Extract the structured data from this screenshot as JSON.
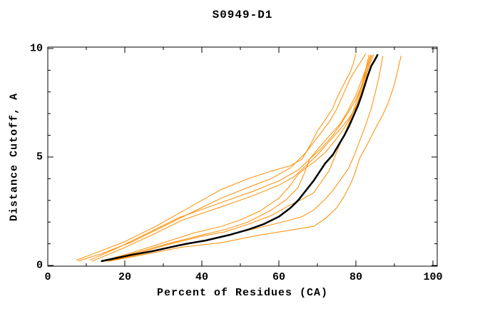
{
  "title": "S0949-D1",
  "chart_data": {
    "type": "line",
    "title": "S0949-D1",
    "xlabel": "Percent of Residues (CA)",
    "ylabel": "Distance Cutoff, A",
    "xlim": [
      0,
      101
    ],
    "ylim": [
      0,
      10.1
    ],
    "grid": false,
    "legend": "none",
    "x_major_ticks": [
      0,
      20,
      40,
      60,
      80,
      100
    ],
    "x_minor_ticks": [
      10,
      30,
      50,
      70,
      90
    ],
    "y_major_ticks": [
      0,
      5,
      10
    ],
    "y_minor_ticks": [
      1,
      2,
      3,
      4,
      6,
      7,
      8,
      9
    ],
    "x_tick_labels": [
      "0",
      "20",
      "40",
      "60",
      "80",
      "100"
    ],
    "y_tick_labels": [
      "0",
      "5",
      "10"
    ],
    "colors": {
      "model_lines": "#ff8c00",
      "highlight_line": "#000000",
      "frame": "#000000"
    },
    "series": [
      {
        "id": "orange-1",
        "color": "#ff8c00",
        "width": 1,
        "points": [
          [
            7.5,
            0.25
          ],
          [
            12,
            0.55
          ],
          [
            20,
            1.1
          ],
          [
            28,
            1.8
          ],
          [
            35,
            2.5
          ],
          [
            45,
            3.5
          ],
          [
            52,
            4.0
          ],
          [
            58,
            4.35
          ],
          [
            63,
            4.6
          ],
          [
            66,
            4.9
          ],
          [
            68,
            5.5
          ],
          [
            70,
            6.2
          ],
          [
            72,
            6.7
          ],
          [
            74,
            7.25
          ],
          [
            75,
            7.7
          ],
          [
            77,
            8.4
          ],
          [
            78.5,
            8.9
          ],
          [
            79.3,
            9.3
          ],
          [
            80,
            9.75
          ]
        ]
      },
      {
        "id": "orange-2",
        "color": "#ff8c00",
        "width": 1,
        "points": [
          [
            8,
            0.2
          ],
          [
            14,
            0.55
          ],
          [
            22,
            1.1
          ],
          [
            30,
            1.8
          ],
          [
            38,
            2.5
          ],
          [
            45,
            3.1
          ],
          [
            52,
            3.6
          ],
          [
            58,
            4.0
          ],
          [
            63,
            4.5
          ],
          [
            67,
            5.2
          ],
          [
            70,
            5.9
          ],
          [
            73,
            6.6
          ],
          [
            75,
            7.2
          ],
          [
            77,
            8.0
          ],
          [
            78.5,
            8.6
          ],
          [
            80,
            9.05
          ],
          [
            81.5,
            9.45
          ],
          [
            82.5,
            9.75
          ]
        ]
      },
      {
        "id": "orange-3",
        "color": "#ff8c00",
        "width": 1,
        "points": [
          [
            11,
            0.25
          ],
          [
            18,
            0.8
          ],
          [
            26,
            1.5
          ],
          [
            34,
            2.2
          ],
          [
            45,
            2.9
          ],
          [
            53,
            3.4
          ],
          [
            60,
            3.9
          ],
          [
            65,
            4.4
          ],
          [
            68,
            4.9
          ],
          [
            71,
            5.4
          ],
          [
            74,
            6.0
          ],
          [
            76,
            6.5
          ],
          [
            78,
            7.05
          ],
          [
            80,
            7.65
          ],
          [
            81.5,
            8.3
          ],
          [
            82.5,
            9.0
          ],
          [
            83.4,
            9.7
          ]
        ]
      },
      {
        "id": "orange-4",
        "color": "#ff8c00",
        "width": 1,
        "points": [
          [
            11.5,
            0.2
          ],
          [
            19,
            0.75
          ],
          [
            27,
            1.4
          ],
          [
            35,
            2.1
          ],
          [
            45,
            2.7
          ],
          [
            53,
            3.2
          ],
          [
            60,
            3.7
          ],
          [
            64,
            4.1
          ],
          [
            67,
            4.6
          ],
          [
            70,
            5.1
          ],
          [
            73,
            5.7
          ],
          [
            76,
            6.3
          ],
          [
            78,
            6.75
          ],
          [
            80,
            7.25
          ],
          [
            81,
            7.85
          ],
          [
            82,
            8.5
          ],
          [
            83,
            9.1
          ],
          [
            84,
            9.65
          ]
        ]
      },
      {
        "id": "orange-5",
        "color": "#ff8c00",
        "width": 1,
        "points": [
          [
            14,
            0.2
          ],
          [
            22,
            0.6
          ],
          [
            30,
            1.05
          ],
          [
            38,
            1.5
          ],
          [
            45,
            1.8
          ],
          [
            50,
            2.1
          ],
          [
            55,
            2.5
          ],
          [
            60,
            3.1
          ],
          [
            63,
            3.7
          ],
          [
            65,
            4.2
          ],
          [
            67,
            4.5
          ],
          [
            69,
            4.75
          ],
          [
            72,
            5.2
          ],
          [
            75,
            5.85
          ],
          [
            77,
            6.35
          ],
          [
            79,
            6.95
          ],
          [
            81,
            7.7
          ],
          [
            82,
            8.3
          ],
          [
            83,
            8.95
          ],
          [
            84,
            9.45
          ],
          [
            84.6,
            9.7
          ]
        ]
      },
      {
        "id": "orange-6",
        "color": "#ff8c00",
        "width": 1,
        "points": [
          [
            14.5,
            0.2
          ],
          [
            23,
            0.6
          ],
          [
            31,
            1.0
          ],
          [
            40,
            1.4
          ],
          [
            46,
            1.65
          ],
          [
            52,
            2.0
          ],
          [
            58,
            2.55
          ],
          [
            62,
            3.05
          ],
          [
            65,
            3.6
          ],
          [
            66.5,
            4.2
          ],
          [
            68,
            4.9
          ],
          [
            70,
            5.35
          ],
          [
            73,
            5.95
          ],
          [
            76,
            6.55
          ],
          [
            78,
            7.15
          ],
          [
            80,
            7.85
          ],
          [
            81.5,
            8.55
          ],
          [
            83,
            9.25
          ],
          [
            83.8,
            9.7
          ]
        ]
      },
      {
        "id": "orange-7",
        "color": "#ff8c00",
        "width": 1,
        "points": [
          [
            15,
            0.2
          ],
          [
            24,
            0.6
          ],
          [
            32,
            1.0
          ],
          [
            40,
            1.35
          ],
          [
            46,
            1.55
          ],
          [
            52,
            1.9
          ],
          [
            58,
            2.3
          ],
          [
            63,
            2.8
          ],
          [
            66,
            3.05
          ],
          [
            69,
            3.35
          ],
          [
            71,
            3.85
          ],
          [
            73,
            4.35
          ],
          [
            74.5,
            5.0
          ],
          [
            76,
            5.65
          ],
          [
            77.5,
            6.25
          ],
          [
            79,
            6.95
          ],
          [
            80.5,
            7.75
          ],
          [
            82,
            8.6
          ],
          [
            83.2,
            9.2
          ],
          [
            84.2,
            9.7
          ]
        ]
      },
      {
        "id": "orange-8",
        "color": "#ff8c00",
        "width": 1,
        "points": [
          [
            15.5,
            0.2
          ],
          [
            25,
            0.55
          ],
          [
            34,
            0.9
          ],
          [
            42,
            1.2
          ],
          [
            48,
            1.45
          ],
          [
            55,
            1.75
          ],
          [
            62,
            2.05
          ],
          [
            66,
            2.25
          ],
          [
            69,
            2.55
          ],
          [
            72,
            3.05
          ],
          [
            74,
            3.45
          ],
          [
            76,
            3.95
          ],
          [
            78,
            4.45
          ],
          [
            79.5,
            5.05
          ],
          [
            81,
            5.75
          ],
          [
            82.5,
            6.45
          ],
          [
            84,
            7.25
          ],
          [
            85,
            7.95
          ],
          [
            86,
            8.7
          ],
          [
            87,
            9.65
          ]
        ]
      },
      {
        "id": "orange-9",
        "color": "#ff8c00",
        "width": 1,
        "points": [
          [
            16,
            0.2
          ],
          [
            25,
            0.5
          ],
          [
            35,
            0.85
          ],
          [
            45,
            1.05
          ],
          [
            55,
            1.4
          ],
          [
            62,
            1.6
          ],
          [
            69,
            1.8
          ],
          [
            72,
            2.15
          ],
          [
            75,
            2.65
          ],
          [
            77,
            3.2
          ],
          [
            79,
            3.9
          ],
          [
            80,
            4.4
          ],
          [
            81,
            4.95
          ],
          [
            83,
            5.6
          ],
          [
            85,
            6.3
          ],
          [
            87,
            6.95
          ],
          [
            88.5,
            7.55
          ],
          [
            90,
            8.35
          ],
          [
            91,
            9.1
          ],
          [
            91.7,
            9.65
          ]
        ]
      },
      {
        "id": "black-highlight",
        "color": "#000000",
        "width": 2.5,
        "points": [
          [
            14,
            0.2
          ],
          [
            18,
            0.35
          ],
          [
            22,
            0.5
          ],
          [
            27,
            0.65
          ],
          [
            32,
            0.85
          ],
          [
            36,
            1.0
          ],
          [
            41,
            1.15
          ],
          [
            47,
            1.4
          ],
          [
            52,
            1.65
          ],
          [
            56,
            1.9
          ],
          [
            60,
            2.25
          ],
          [
            63,
            2.65
          ],
          [
            65,
            3.0
          ],
          [
            67,
            3.45
          ],
          [
            69,
            3.9
          ],
          [
            70.5,
            4.3
          ],
          [
            72,
            4.7
          ],
          [
            74,
            5.1
          ],
          [
            75.5,
            5.55
          ],
          [
            77,
            6.0
          ],
          [
            78.3,
            6.45
          ],
          [
            79.5,
            6.95
          ],
          [
            80.5,
            7.35
          ],
          [
            81.5,
            7.85
          ],
          [
            82.3,
            8.3
          ],
          [
            83,
            8.7
          ],
          [
            84,
            9.2
          ],
          [
            85,
            9.5
          ],
          [
            85.6,
            9.7
          ]
        ]
      }
    ]
  }
}
